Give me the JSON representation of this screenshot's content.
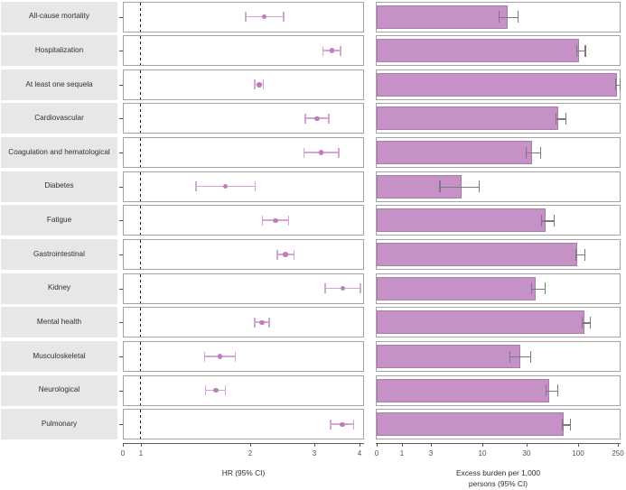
{
  "chart_data": {
    "type": "forest+bar",
    "description": "Two-panel faceted figure: forest plot of hazard ratios (log scale, dashed reference line at HR=1) and bar chart of excess burden per 1,000 persons (pseudo-log scale) for 13 outcomes",
    "categories": [
      "All-cause mortality",
      "Hospitalization",
      "At least one sequela",
      "Cardiovascular",
      "Coagulation and hematological",
      "Diabetes",
      "Fatigue",
      "Gastrointestinal",
      "Kidney",
      "Mental health",
      "Musculoskeletal",
      "Neurological",
      "Pulmonary"
    ],
    "forest": {
      "name": "HR (95% CI)",
      "scale": "log",
      "ref_line": 1,
      "xlim": [
        0,
        4
      ],
      "ticks": [
        "0",
        "1",
        "2",
        "3",
        "4"
      ],
      "est": [
        2.17,
        3.32,
        2.1,
        3.02,
        3.1,
        1.7,
        2.33,
        2.48,
        3.55,
        2.14,
        1.64,
        1.6,
        3.54
      ],
      "lo": [
        1.93,
        3.13,
        2.04,
        2.8,
        2.78,
        1.41,
        2.14,
        2.35,
        3.18,
        2.04,
        1.49,
        1.5,
        3.29
      ],
      "hi": [
        2.45,
        3.51,
        2.16,
        3.26,
        3.47,
        2.05,
        2.53,
        2.62,
        3.97,
        2.24,
        1.81,
        1.7,
        3.81
      ]
    },
    "bars": {
      "name": "Excess burden per 1,000 persons (95% CI)",
      "scale": "pseudo-log",
      "xlim": [
        0,
        250
      ],
      "ticks": [
        "0",
        "1",
        "3",
        "10",
        "30",
        "100",
        "250"
      ],
      "est": [
        19.0,
        102.1,
        246.3,
        62.7,
        34.4,
        6.0,
        47.2,
        97.9,
        37.4,
        116.5,
        25.7,
        50.8,
        71.9
      ],
      "lo": [
        15.4,
        95.3,
        233.4,
        59.2,
        29.2,
        3.2,
        42.5,
        93.3,
        33.6,
        109.4,
        19.9,
        47.2,
        68.2
      ],
      "hi": [
        24.4,
        116.5,
        260.6,
        74.1,
        41.1,
        9.4,
        57.1,
        115.0,
        45.7,
        130.3,
        32.5,
        61.4,
        83.3
      ]
    },
    "xlabel_left": "HR (95% CI)",
    "xlabel_right": [
      "Excess burden per 1,000",
      "persons (95% CI)"
    ],
    "grid": "off",
    "legend": "none",
    "colors": {
      "bar_fill": "#c591c6",
      "bar_border": "#aa7cab",
      "forest_line": "#d4a6d4",
      "forest_point": "#c07cbd",
      "error_bar": "#7a7a7a",
      "label_bg": "#e7e7e7",
      "panel_border": "#a3a3a3",
      "ref_line": "#141414",
      "axis": "#5a5a5a"
    }
  }
}
